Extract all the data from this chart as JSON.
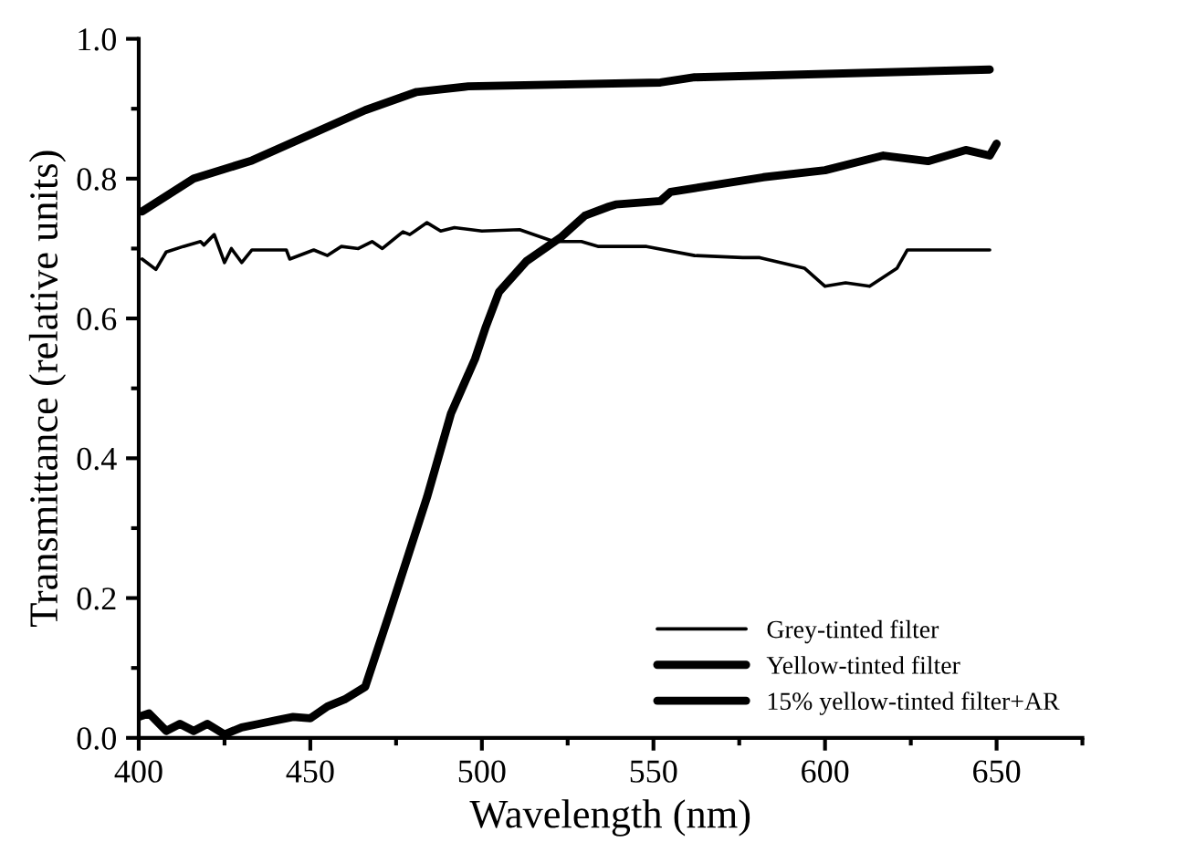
{
  "chart_data": {
    "type": "line",
    "xlabel": "Wavelength (nm)",
    "ylabel": "Transmittance (relative units)",
    "xlim": [
      400,
      675
    ],
    "xticks": [
      400,
      450,
      500,
      550,
      600,
      650
    ],
    "ylim": [
      0,
      1.0
    ],
    "yticks": [
      {
        "value": 0,
        "label": "0.0"
      },
      0.2,
      0.4,
      0.6,
      0.8,
      {
        "value": 1.0,
        "label": "1.0"
      }
    ],
    "grid": false,
    "legend": "bottom right",
    "marker": "none",
    "line_style": "solid",
    "series": [
      {
        "name": "Grey-tinted filter",
        "color": "#000000",
        "x": [
          401,
          405,
          408,
          413,
          418,
          419,
          422,
          425,
          427,
          430,
          433,
          443,
          444,
          451,
          455,
          459,
          464,
          468,
          471,
          477,
          479,
          484,
          488,
          492,
          500,
          511,
          521,
          529,
          534,
          548,
          562,
          576,
          581,
          594,
          600,
          606,
          613,
          621,
          624,
          637,
          648
        ],
        "values": [
          0.685,
          0.67,
          0.695,
          0.703,
          0.71,
          0.705,
          0.72,
          0.68,
          0.7,
          0.68,
          0.698,
          0.698,
          0.685,
          0.698,
          0.69,
          0.703,
          0.7,
          0.71,
          0.7,
          0.724,
          0.72,
          0.737,
          0.725,
          0.73,
          0.725,
          0.727,
          0.71,
          0.71,
          0.703,
          0.703,
          0.69,
          0.687,
          0.687,
          0.672,
          0.646,
          0.651,
          0.646,
          0.672,
          0.698,
          0.698,
          0.698
        ]
      },
      {
        "name": "Yellow-tinted filter",
        "color": "#000000",
        "x": [
          400,
          403,
          408,
          412,
          416,
          420,
          425,
          430,
          435,
          440,
          445,
          450,
          455,
          460,
          466,
          473,
          484,
          491,
          498,
          501,
          505,
          513,
          523,
          530,
          537,
          539,
          552,
          555,
          582,
          600,
          617,
          630,
          641,
          648,
          650
        ],
        "values": [
          0.03,
          0.035,
          0.01,
          0.02,
          0.01,
          0.02,
          0.005,
          0.015,
          0.02,
          0.025,
          0.03,
          0.028,
          0.045,
          0.055,
          0.073,
          0.177,
          0.344,
          0.464,
          0.542,
          0.586,
          0.638,
          0.682,
          0.716,
          0.747,
          0.76,
          0.763,
          0.768,
          0.781,
          0.802,
          0.812,
          0.833,
          0.825,
          0.841,
          0.833,
          0.85
        ]
      },
      {
        "name": "15% yellow-tinted filter+AR",
        "color": "#000000",
        "x": [
          401,
          416,
          433,
          466,
          481,
          496,
          552,
          562,
          648
        ],
        "values": [
          0.753,
          0.8,
          0.826,
          0.898,
          0.924,
          0.932,
          0.9375,
          0.945,
          0.956
        ]
      }
    ]
  }
}
